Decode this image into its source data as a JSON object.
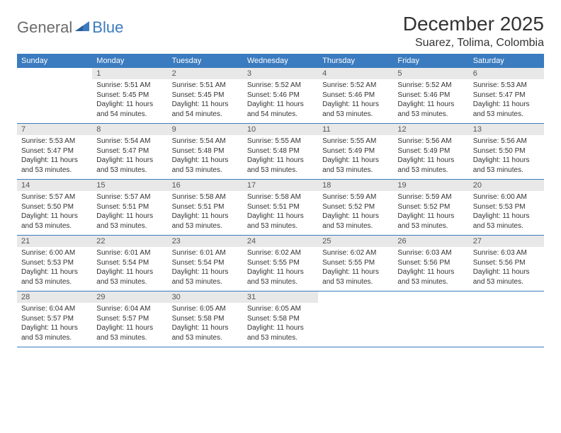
{
  "logo": {
    "text1": "General",
    "text2": "Blue"
  },
  "title": "December 2025",
  "location": "Suarez, Tolima, Colombia",
  "colors": {
    "header_bg": "#3b7bbf",
    "header_fg": "#ffffff",
    "daynum_bg": "#e8e8e8",
    "border": "#3b7bbf",
    "logo_gray": "#6b6b6b",
    "logo_blue": "#3b7bbf",
    "text": "#333333"
  },
  "daysOfWeek": [
    "Sunday",
    "Monday",
    "Tuesday",
    "Wednesday",
    "Thursday",
    "Friday",
    "Saturday"
  ],
  "weeks": [
    [
      null,
      {
        "n": "1",
        "sr": "Sunrise: 5:51 AM",
        "ss": "Sunset: 5:45 PM",
        "dl": "Daylight: 11 hours and 54 minutes."
      },
      {
        "n": "2",
        "sr": "Sunrise: 5:51 AM",
        "ss": "Sunset: 5:45 PM",
        "dl": "Daylight: 11 hours and 54 minutes."
      },
      {
        "n": "3",
        "sr": "Sunrise: 5:52 AM",
        "ss": "Sunset: 5:46 PM",
        "dl": "Daylight: 11 hours and 54 minutes."
      },
      {
        "n": "4",
        "sr": "Sunrise: 5:52 AM",
        "ss": "Sunset: 5:46 PM",
        "dl": "Daylight: 11 hours and 53 minutes."
      },
      {
        "n": "5",
        "sr": "Sunrise: 5:52 AM",
        "ss": "Sunset: 5:46 PM",
        "dl": "Daylight: 11 hours and 53 minutes."
      },
      {
        "n": "6",
        "sr": "Sunrise: 5:53 AM",
        "ss": "Sunset: 5:47 PM",
        "dl": "Daylight: 11 hours and 53 minutes."
      }
    ],
    [
      {
        "n": "7",
        "sr": "Sunrise: 5:53 AM",
        "ss": "Sunset: 5:47 PM",
        "dl": "Daylight: 11 hours and 53 minutes."
      },
      {
        "n": "8",
        "sr": "Sunrise: 5:54 AM",
        "ss": "Sunset: 5:47 PM",
        "dl": "Daylight: 11 hours and 53 minutes."
      },
      {
        "n": "9",
        "sr": "Sunrise: 5:54 AM",
        "ss": "Sunset: 5:48 PM",
        "dl": "Daylight: 11 hours and 53 minutes."
      },
      {
        "n": "10",
        "sr": "Sunrise: 5:55 AM",
        "ss": "Sunset: 5:48 PM",
        "dl": "Daylight: 11 hours and 53 minutes."
      },
      {
        "n": "11",
        "sr": "Sunrise: 5:55 AM",
        "ss": "Sunset: 5:49 PM",
        "dl": "Daylight: 11 hours and 53 minutes."
      },
      {
        "n": "12",
        "sr": "Sunrise: 5:56 AM",
        "ss": "Sunset: 5:49 PM",
        "dl": "Daylight: 11 hours and 53 minutes."
      },
      {
        "n": "13",
        "sr": "Sunrise: 5:56 AM",
        "ss": "Sunset: 5:50 PM",
        "dl": "Daylight: 11 hours and 53 minutes."
      }
    ],
    [
      {
        "n": "14",
        "sr": "Sunrise: 5:57 AM",
        "ss": "Sunset: 5:50 PM",
        "dl": "Daylight: 11 hours and 53 minutes."
      },
      {
        "n": "15",
        "sr": "Sunrise: 5:57 AM",
        "ss": "Sunset: 5:51 PM",
        "dl": "Daylight: 11 hours and 53 minutes."
      },
      {
        "n": "16",
        "sr": "Sunrise: 5:58 AM",
        "ss": "Sunset: 5:51 PM",
        "dl": "Daylight: 11 hours and 53 minutes."
      },
      {
        "n": "17",
        "sr": "Sunrise: 5:58 AM",
        "ss": "Sunset: 5:51 PM",
        "dl": "Daylight: 11 hours and 53 minutes."
      },
      {
        "n": "18",
        "sr": "Sunrise: 5:59 AM",
        "ss": "Sunset: 5:52 PM",
        "dl": "Daylight: 11 hours and 53 minutes."
      },
      {
        "n": "19",
        "sr": "Sunrise: 5:59 AM",
        "ss": "Sunset: 5:52 PM",
        "dl": "Daylight: 11 hours and 53 minutes."
      },
      {
        "n": "20",
        "sr": "Sunrise: 6:00 AM",
        "ss": "Sunset: 5:53 PM",
        "dl": "Daylight: 11 hours and 53 minutes."
      }
    ],
    [
      {
        "n": "21",
        "sr": "Sunrise: 6:00 AM",
        "ss": "Sunset: 5:53 PM",
        "dl": "Daylight: 11 hours and 53 minutes."
      },
      {
        "n": "22",
        "sr": "Sunrise: 6:01 AM",
        "ss": "Sunset: 5:54 PM",
        "dl": "Daylight: 11 hours and 53 minutes."
      },
      {
        "n": "23",
        "sr": "Sunrise: 6:01 AM",
        "ss": "Sunset: 5:54 PM",
        "dl": "Daylight: 11 hours and 53 minutes."
      },
      {
        "n": "24",
        "sr": "Sunrise: 6:02 AM",
        "ss": "Sunset: 5:55 PM",
        "dl": "Daylight: 11 hours and 53 minutes."
      },
      {
        "n": "25",
        "sr": "Sunrise: 6:02 AM",
        "ss": "Sunset: 5:55 PM",
        "dl": "Daylight: 11 hours and 53 minutes."
      },
      {
        "n": "26",
        "sr": "Sunrise: 6:03 AM",
        "ss": "Sunset: 5:56 PM",
        "dl": "Daylight: 11 hours and 53 minutes."
      },
      {
        "n": "27",
        "sr": "Sunrise: 6:03 AM",
        "ss": "Sunset: 5:56 PM",
        "dl": "Daylight: 11 hours and 53 minutes."
      }
    ],
    [
      {
        "n": "28",
        "sr": "Sunrise: 6:04 AM",
        "ss": "Sunset: 5:57 PM",
        "dl": "Daylight: 11 hours and 53 minutes."
      },
      {
        "n": "29",
        "sr": "Sunrise: 6:04 AM",
        "ss": "Sunset: 5:57 PM",
        "dl": "Daylight: 11 hours and 53 minutes."
      },
      {
        "n": "30",
        "sr": "Sunrise: 6:05 AM",
        "ss": "Sunset: 5:58 PM",
        "dl": "Daylight: 11 hours and 53 minutes."
      },
      {
        "n": "31",
        "sr": "Sunrise: 6:05 AM",
        "ss": "Sunset: 5:58 PM",
        "dl": "Daylight: 11 hours and 53 minutes."
      },
      null,
      null,
      null
    ]
  ]
}
